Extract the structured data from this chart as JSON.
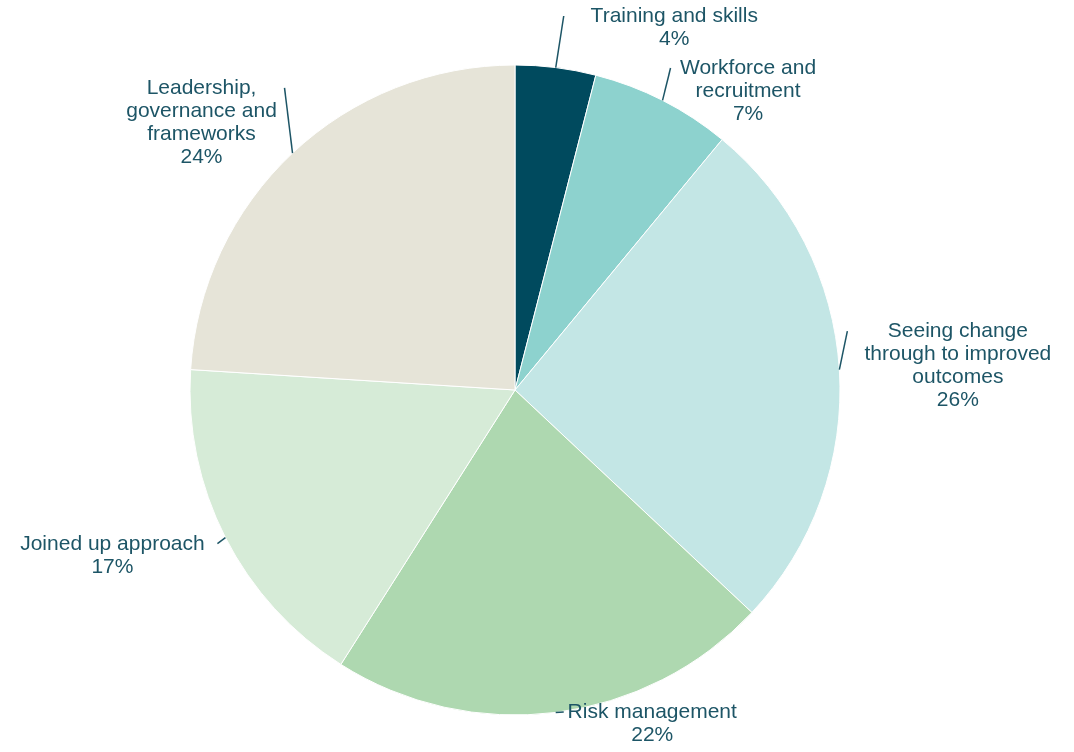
{
  "chart_data": {
    "type": "pie",
    "categories": [
      "Training and skills",
      "Workforce and recruitment",
      "Seeing change through to improved outcomes",
      "Risk management",
      "Joined up approach",
      "Leadership, governance and frameworks"
    ],
    "values": [
      4,
      7,
      26,
      22,
      17,
      24
    ],
    "value_labels": [
      "4%",
      "7%",
      "26%",
      "22%",
      "17%",
      "24%"
    ],
    "colors": [
      "#004a5e",
      "#8dd2ce",
      "#c3e6e5",
      "#aed8b0",
      "#d6ebd7",
      "#e6e4d8"
    ]
  }
}
